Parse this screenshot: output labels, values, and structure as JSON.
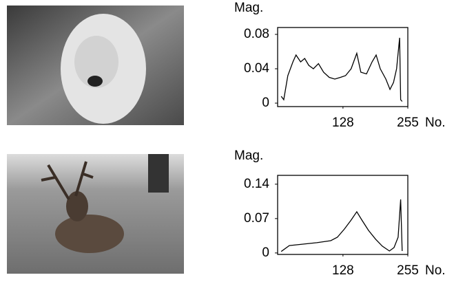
{
  "chart_data": [
    {
      "type": "line",
      "y_label": "Mag.",
      "x_label": "No.",
      "xlim": [
        0,
        255
      ],
      "ylim": [
        -0.004,
        0.088
      ],
      "xticks": [
        128,
        255
      ],
      "yticks": [
        0,
        0.04,
        0.08
      ],
      "color": "#000000",
      "x": [
        7,
        12,
        20,
        30,
        36,
        45,
        53,
        61,
        70,
        80,
        90,
        101,
        112,
        123,
        133,
        144,
        155,
        163,
        174,
        185,
        193,
        201,
        212,
        220,
        227,
        233,
        239,
        241,
        244
      ],
      "values": [
        0.008,
        0.004,
        0.032,
        0.048,
        0.056,
        0.048,
        0.052,
        0.044,
        0.04,
        0.046,
        0.036,
        0.03,
        0.028,
        0.03,
        0.032,
        0.04,
        0.058,
        0.036,
        0.034,
        0.048,
        0.056,
        0.04,
        0.028,
        0.016,
        0.024,
        0.04,
        0.076,
        0.004,
        0.002
      ]
    },
    {
      "type": "line",
      "y_label": "Mag.",
      "x_label": "No.",
      "xlim": [
        0,
        255
      ],
      "ylim": [
        -0.003,
        0.158
      ],
      "xticks": [
        128,
        255
      ],
      "yticks": [
        0,
        0.07,
        0.14
      ],
      "color": "#000000",
      "x": [
        7,
        23,
        50,
        77,
        104,
        117,
        131,
        144,
        155,
        165,
        178,
        192,
        205,
        219,
        228,
        236,
        241,
        244
      ],
      "values": [
        0.003,
        0.015,
        0.018,
        0.021,
        0.025,
        0.032,
        0.049,
        0.067,
        0.084,
        0.067,
        0.046,
        0.028,
        0.014,
        0.004,
        0.011,
        0.032,
        0.109,
        0.004
      ]
    }
  ]
}
